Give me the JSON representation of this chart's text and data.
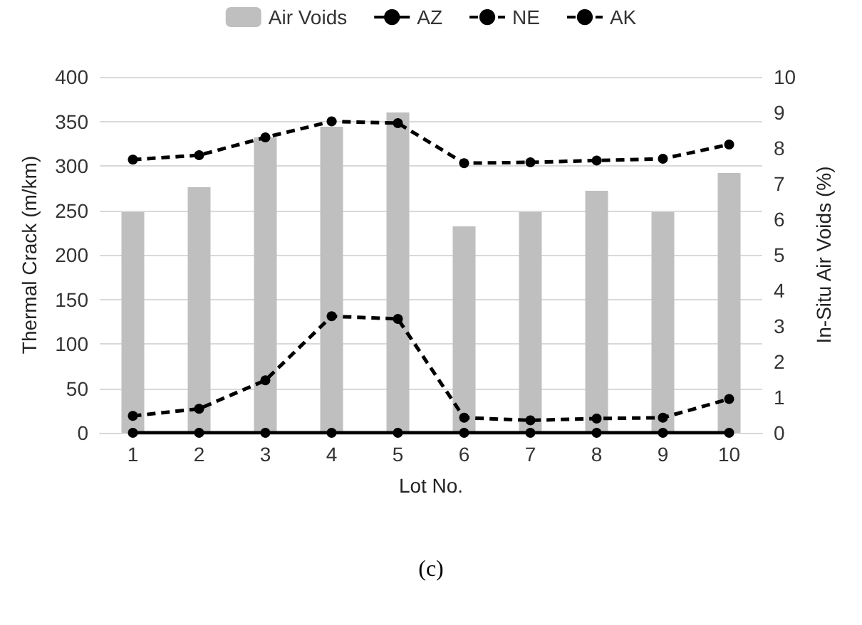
{
  "chart_data": {
    "type": "line",
    "categories": [
      "1",
      "2",
      "3",
      "4",
      "5",
      "6",
      "7",
      "8",
      "9",
      "10"
    ],
    "xlabel": "Lot No.",
    "ylabel": "Thermal Crack (m/km)",
    "y2label": "In-Situ Air Voids (%)",
    "series": [
      {
        "name": "Air Voids",
        "type": "bar",
        "axis": "y2",
        "color": "#bfbfbf",
        "values": [
          6.2,
          6.9,
          8.3,
          8.6,
          9.0,
          5.8,
          6.2,
          6.8,
          6.2,
          7.3
        ]
      },
      {
        "name": "AZ",
        "color": "#000000",
        "line_style": "solid",
        "values": [
          0,
          0,
          0,
          0,
          0,
          0,
          0,
          0,
          0,
          0
        ]
      },
      {
        "name": "NE",
        "color": "#000000",
        "line_style": "dashed",
        "values": [
          19,
          27,
          59,
          131,
          128,
          17,
          14,
          16,
          17,
          38
        ]
      },
      {
        "name": "AK",
        "color": "#000000",
        "line_style": "dashed",
        "values": [
          307,
          312,
          332,
          350,
          348,
          303,
          304,
          306,
          308,
          324
        ]
      }
    ],
    "ylim": [
      0,
      400
    ],
    "yticks": [
      0,
      50,
      100,
      150,
      200,
      250,
      300,
      350,
      400
    ],
    "y2lim": [
      0,
      10
    ],
    "y2ticks": [
      0,
      1,
      2,
      3,
      4,
      5,
      6,
      7,
      8,
      9,
      10
    ],
    "grid": "y",
    "legend": "top",
    "marker": "circle",
    "annotations": [
      "(c)"
    ]
  }
}
